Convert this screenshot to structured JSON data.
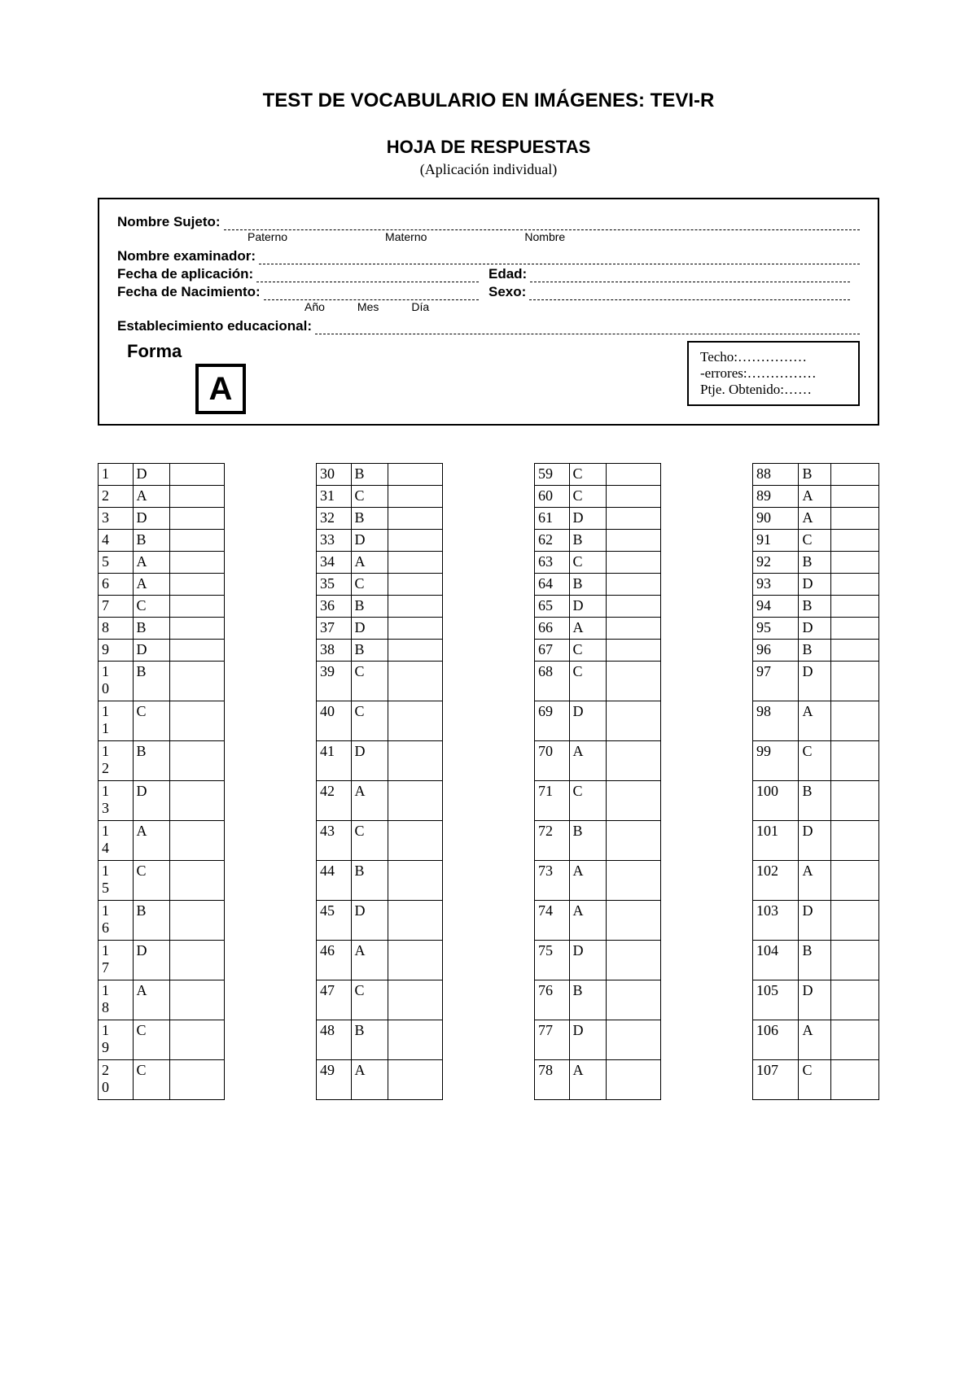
{
  "title": "TEST DE VOCABULARIO EN IMÁGENES: TEVI-R",
  "subtitle": "HOJA DE RESPUESTAS",
  "application_line": "(Aplicación individual)",
  "info": {
    "nombre_sujeto": "Nombre Sujeto:",
    "sub_paterno": "Paterno",
    "sub_materno": "Materno",
    "sub_nombre": "Nombre",
    "nombre_examinador": "Nombre examinador:",
    "fecha_aplicacion": "Fecha de aplicación:",
    "edad": "Edad:",
    "fecha_nacimiento": "Fecha de Nacimiento:",
    "sexo": "Sexo:",
    "sub_ano": "Año",
    "sub_mes": "Mes",
    "sub_dia": "Día",
    "establecimiento": "Establecimiento educacional:",
    "forma_label": "Forma",
    "forma_value": "A",
    "score_techo": "Techo:……………",
    "score_errores": "-errores:……………",
    "score_ptje": "Ptje. Obtenido:……"
  },
  "columns": [
    {
      "col_class": "col1",
      "items": [
        {
          "n": "1",
          "a": "D",
          "tall": false
        },
        {
          "n": "2",
          "a": "A",
          "tall": false
        },
        {
          "n": "3",
          "a": "D",
          "tall": false
        },
        {
          "n": "4",
          "a": "B",
          "tall": false
        },
        {
          "n": "5",
          "a": "A",
          "tall": false
        },
        {
          "n": "6",
          "a": "A",
          "tall": false
        },
        {
          "n": "7",
          "a": "C",
          "tall": false
        },
        {
          "n": "8",
          "a": "B",
          "tall": false
        },
        {
          "n": "9",
          "a": "D",
          "tall": false
        },
        {
          "n": "10",
          "a": "B",
          "tall": true
        },
        {
          "n": "11",
          "a": "C",
          "tall": true
        },
        {
          "n": "12",
          "a": "B",
          "tall": true
        },
        {
          "n": "13",
          "a": "D",
          "tall": true
        },
        {
          "n": "14",
          "a": "A",
          "tall": true
        },
        {
          "n": "15",
          "a": "C",
          "tall": true
        },
        {
          "n": "16",
          "a": "B",
          "tall": true
        },
        {
          "n": "17",
          "a": "D",
          "tall": true
        },
        {
          "n": "18",
          "a": "A",
          "tall": true
        },
        {
          "n": "19",
          "a": "C",
          "tall": true
        },
        {
          "n": "20",
          "a": "C",
          "tall": true
        }
      ]
    },
    {
      "col_class": "col2",
      "items": [
        {
          "n": "30",
          "a": "B",
          "tall": false
        },
        {
          "n": "31",
          "a": "C",
          "tall": false
        },
        {
          "n": "32",
          "a": "B",
          "tall": false
        },
        {
          "n": "33",
          "a": "D",
          "tall": false
        },
        {
          "n": "34",
          "a": "A",
          "tall": false
        },
        {
          "n": "35",
          "a": "C",
          "tall": false
        },
        {
          "n": "36",
          "a": "B",
          "tall": false
        },
        {
          "n": "37",
          "a": "D",
          "tall": false
        },
        {
          "n": "38",
          "a": "B",
          "tall": false
        },
        {
          "n": "39",
          "a": "C",
          "tall": true
        },
        {
          "n": "40",
          "a": "C",
          "tall": true
        },
        {
          "n": "41",
          "a": "D",
          "tall": true
        },
        {
          "n": "42",
          "a": "A",
          "tall": true
        },
        {
          "n": "43",
          "a": "C",
          "tall": true
        },
        {
          "n": "44",
          "a": "B",
          "tall": true
        },
        {
          "n": "45",
          "a": "D",
          "tall": true
        },
        {
          "n": "46",
          "a": "A",
          "tall": true
        },
        {
          "n": "47",
          "a": "C",
          "tall": true
        },
        {
          "n": "48",
          "a": "B",
          "tall": true
        },
        {
          "n": "49",
          "a": "A",
          "tall": true
        }
      ]
    },
    {
      "col_class": "col3",
      "items": [
        {
          "n": "59",
          "a": "C",
          "tall": false
        },
        {
          "n": "60",
          "a": "C",
          "tall": false
        },
        {
          "n": "61",
          "a": "D",
          "tall": false
        },
        {
          "n": "62",
          "a": "B",
          "tall": false
        },
        {
          "n": "63",
          "a": "C",
          "tall": false
        },
        {
          "n": "64",
          "a": "B",
          "tall": false
        },
        {
          "n": "65",
          "a": "D",
          "tall": false
        },
        {
          "n": "66",
          "a": "A",
          "tall": false
        },
        {
          "n": "67",
          "a": "C",
          "tall": false
        },
        {
          "n": "68",
          "a": "C",
          "tall": true
        },
        {
          "n": "69",
          "a": "D",
          "tall": true
        },
        {
          "n": "70",
          "a": "A",
          "tall": true
        },
        {
          "n": "71",
          "a": "C",
          "tall": true
        },
        {
          "n": "72",
          "a": "B",
          "tall": true
        },
        {
          "n": "73",
          "a": "A",
          "tall": true
        },
        {
          "n": "74",
          "a": "A",
          "tall": true
        },
        {
          "n": "75",
          "a": "D",
          "tall": true
        },
        {
          "n": "76",
          "a": "B",
          "tall": true
        },
        {
          "n": "77",
          "a": "D",
          "tall": true
        },
        {
          "n": "78",
          "a": "A",
          "tall": true
        }
      ]
    },
    {
      "col_class": "col4",
      "items": [
        {
          "n": "88",
          "a": "B",
          "tall": false
        },
        {
          "n": "89",
          "a": "A",
          "tall": false
        },
        {
          "n": "90",
          "a": "A",
          "tall": false
        },
        {
          "n": "91",
          "a": "C",
          "tall": false
        },
        {
          "n": "92",
          "a": "B",
          "tall": false
        },
        {
          "n": "93",
          "a": "D",
          "tall": false
        },
        {
          "n": "94",
          "a": "B",
          "tall": false
        },
        {
          "n": "95",
          "a": "D",
          "tall": false
        },
        {
          "n": "96",
          "a": "B",
          "tall": false
        },
        {
          "n": "97",
          "a": "D",
          "tall": true
        },
        {
          "n": "98",
          "a": "A",
          "tall": true
        },
        {
          "n": "99",
          "a": "C",
          "tall": true
        },
        {
          "n": "100",
          "a": "B",
          "tall": true
        },
        {
          "n": "101",
          "a": "D",
          "tall": true
        },
        {
          "n": "102",
          "a": "A",
          "tall": true
        },
        {
          "n": "103",
          "a": "D",
          "tall": true
        },
        {
          "n": "104",
          "a": "B",
          "tall": true
        },
        {
          "n": "105",
          "a": "D",
          "tall": true
        },
        {
          "n": "106",
          "a": "A",
          "tall": true
        },
        {
          "n": "107",
          "a": "C",
          "tall": true
        }
      ]
    }
  ]
}
